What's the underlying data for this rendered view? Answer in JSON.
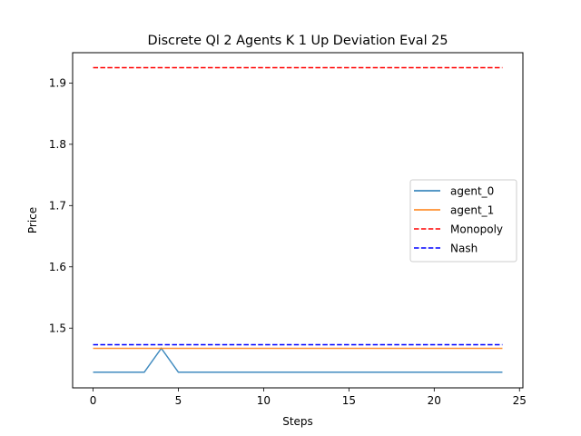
{
  "chart_data": {
    "type": "line",
    "title": "Discrete Ql 2 Agents K 1 Up Deviation Eval 25",
    "xlabel": "Steps",
    "ylabel": "Price",
    "xlim": [
      -1.2,
      25.2
    ],
    "ylim": [
      1.4025,
      1.9495
    ],
    "xticks": [
      0,
      5,
      10,
      15,
      20,
      25
    ],
    "yticks": [
      1.5,
      1.6,
      1.7,
      1.8,
      1.9
    ],
    "ytick_labels": [
      "1.5",
      "1.6",
      "1.7",
      "1.8",
      "1.9"
    ],
    "grid": false,
    "legend_position": "center-right",
    "series": [
      {
        "name": "agent_0",
        "color": "#1f77b4",
        "style": "solid",
        "x": [
          0,
          1,
          2,
          3,
          4,
          5,
          6,
          7,
          8,
          9,
          10,
          11,
          12,
          13,
          14,
          15,
          16,
          17,
          18,
          19,
          20,
          21,
          22,
          23,
          24
        ],
        "y": [
          1.428,
          1.428,
          1.428,
          1.428,
          1.467,
          1.428,
          1.428,
          1.428,
          1.428,
          1.428,
          1.428,
          1.428,
          1.428,
          1.428,
          1.428,
          1.428,
          1.428,
          1.428,
          1.428,
          1.428,
          1.428,
          1.428,
          1.428,
          1.428,
          1.428
        ]
      },
      {
        "name": "agent_1",
        "color": "#ff7f0e",
        "style": "solid",
        "x": [
          0,
          1,
          2,
          3,
          4,
          5,
          6,
          7,
          8,
          9,
          10,
          11,
          12,
          13,
          14,
          15,
          16,
          17,
          18,
          19,
          20,
          21,
          22,
          23,
          24
        ],
        "y": [
          1.467,
          1.467,
          1.467,
          1.467,
          1.467,
          1.467,
          1.467,
          1.467,
          1.467,
          1.467,
          1.467,
          1.467,
          1.467,
          1.467,
          1.467,
          1.467,
          1.467,
          1.467,
          1.467,
          1.467,
          1.467,
          1.467,
          1.467,
          1.467,
          1.467
        ]
      },
      {
        "name": "Monopoly",
        "color": "#ff0000",
        "style": "dashed",
        "x": [
          0,
          24
        ],
        "y": [
          1.925,
          1.925
        ]
      },
      {
        "name": "Nash",
        "color": "#0000ff",
        "style": "dashed",
        "x": [
          0,
          24
        ],
        "y": [
          1.473,
          1.473
        ]
      }
    ]
  }
}
